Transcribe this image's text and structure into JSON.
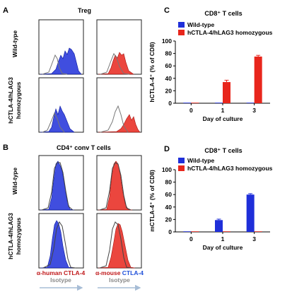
{
  "panels": {
    "A": {
      "letter": "A",
      "title": "Treg",
      "row_labels": [
        "Wild-type",
        "hCTLA-4/hLAG3",
        "homozygous"
      ]
    },
    "B": {
      "letter": "B",
      "title": "CD4⁺ conv T cells",
      "row_labels": [
        "Wild-type",
        "hCTLA-4/hLAG3",
        "homozygous"
      ],
      "footer": {
        "left_label": "α-human CTLA-4",
        "right_label_prefix": "α-mouse ",
        "right_label_suffix": "CTLA-4",
        "isotype": "Isotype"
      }
    },
    "C": {
      "letter": "C"
    },
    "D": {
      "letter": "D"
    }
  },
  "colors": {
    "blue": "#1f2fd9",
    "red": "#e8261c",
    "isotype": "#9a9a9a",
    "left_label_red": "#c0181a",
    "right_label_blue": "#1f4fd9",
    "arrow_grey": "#a7bdd6"
  },
  "chart_data": [
    {
      "panel": "C",
      "type": "bar",
      "title": "CD8⁺ T cells",
      "xlabel": "Day of culture",
      "ylabel": "hCTLA-4⁺ (% of CD8)",
      "categories": [
        "0",
        "1",
        "3"
      ],
      "ylim": [
        0,
        100
      ],
      "yticks": [
        "0",
        "20",
        "40",
        "60",
        "80",
        "100"
      ],
      "series": [
        {
          "name": "Wild-type",
          "color": "#1f2fd9",
          "values": [
            0,
            0,
            0
          ],
          "errors": [
            0,
            0,
            0
          ]
        },
        {
          "name": "hCTLA-4/hLAG3 homozygous",
          "color": "#e8261c",
          "values": [
            0.5,
            34,
            75
          ],
          "errors": [
            0.3,
            3,
            2
          ]
        }
      ],
      "legend": "top-left"
    },
    {
      "panel": "D",
      "type": "bar",
      "title": "CD8⁺ T cells",
      "xlabel": "Day of culture",
      "ylabel": "mCTLA-4⁺ (% of CD8)",
      "categories": [
        "0",
        "1",
        "3"
      ],
      "ylim": [
        0,
        100
      ],
      "yticks": [
        "0",
        "20",
        "40",
        "60",
        "80",
        "100"
      ],
      "series": [
        {
          "name": "Wild-type",
          "color": "#1f2fd9",
          "values": [
            0.6,
            19,
            60
          ],
          "errors": [
            0.3,
            1.5,
            1.5
          ]
        },
        {
          "name": "hCTLA-4/hLAG3 homozygous",
          "color": "#e8261c",
          "values": [
            0.2,
            0.3,
            0.4
          ],
          "errors": [
            0.1,
            0.1,
            0.1
          ]
        }
      ],
      "legend": "top-left"
    }
  ]
}
